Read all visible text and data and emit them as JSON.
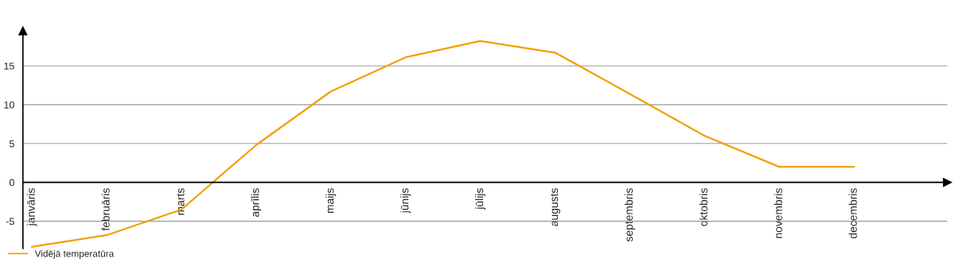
{
  "chart_data": {
    "type": "line",
    "categories": [
      "janvāris",
      "februāris",
      "marts",
      "aprīlis",
      "maijs",
      "jūnijs",
      "jūlijs",
      "augusts",
      "septembris",
      "oktobris",
      "novembris",
      "decembris"
    ],
    "series": [
      {
        "name": "Vidējā temperatūra",
        "color": "#f0a000",
        "values": [
          -8.3,
          -6.8,
          -3.5,
          4.8,
          11.7,
          16.1,
          18.2,
          16.7,
          11.4,
          6.0,
          2.0,
          2.0
        ]
      }
    ],
    "ylim": [
      -8.5,
      19.5
    ],
    "yticks": [
      -5,
      0,
      5,
      10,
      15
    ],
    "grid": "y",
    "legend": "bottom left",
    "marker": "none",
    "line_style": "solid"
  }
}
